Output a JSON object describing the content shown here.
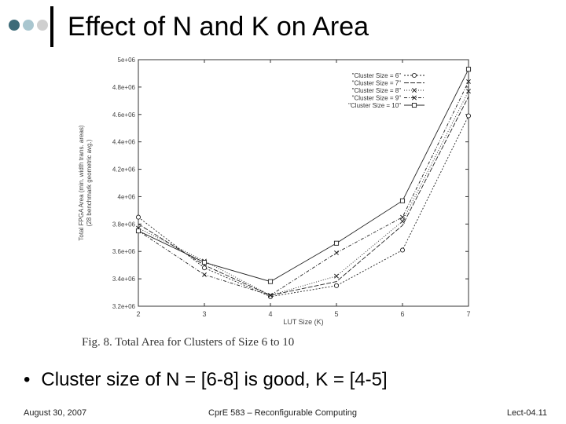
{
  "slide": {
    "title": "Effect of N and K on Area",
    "caption": "Fig. 8.   Total Area for Clusters of Size 6 to 10",
    "bullet": "Cluster size of N = [6-8] is good, K = [4-5]",
    "bullet_symbol": "•",
    "footer_left": "August 30, 2007",
    "footer_center": "CprE 583 – Reconfigurable Computing",
    "footer_right": "Lect-04.11"
  },
  "chart_data": {
    "type": "line",
    "xlabel": "LUT Size (K)",
    "ylabel": "Total FPGA Area (min. width trans. areas)",
    "ylabel2": "(28 benchmark geometric avg.)",
    "x": [
      2,
      3,
      4,
      5,
      6,
      7
    ],
    "xlim": [
      2,
      7
    ],
    "ylim": [
      3200000,
      5000000
    ],
    "y_ticks": [
      3200000,
      3400000,
      3600000,
      3800000,
      4000000,
      4200000,
      4400000,
      4600000,
      4800000,
      5000000
    ],
    "y_tick_labels": [
      "3.2e+06",
      "3.4e+06",
      "3.6e+06",
      "3.8e+06",
      "4e+06",
      "4.2e+06",
      "4.4e+06",
      "4.6e+06",
      "4.8e+06",
      "5e+06"
    ],
    "x_tick_labels": [
      "2",
      "3",
      "4",
      "5",
      "6",
      "7"
    ],
    "grid": false,
    "legend_position": "top-right",
    "series": [
      {
        "name": "\"Cluster Size = 6\"",
        "marker": "circle",
        "dash": "2,2",
        "values": [
          3850000,
          3480000,
          3270000,
          3350000,
          3610000,
          4590000
        ]
      },
      {
        "name": "\"Cluster Size = 7\"",
        "marker": "none",
        "dash": "6,2",
        "values": [
          3800000,
          3500000,
          3280000,
          3380000,
          3790000,
          4730000
        ]
      },
      {
        "name": "\"Cluster Size = 8\"",
        "marker": "x",
        "dash": "1,2",
        "values": [
          3770000,
          3530000,
          3280000,
          3420000,
          3820000,
          4770000
        ]
      },
      {
        "name": "\"Cluster Size = 9\"",
        "marker": "cross",
        "dash": "4,2,1,2",
        "values": [
          3750000,
          3430000,
          3280000,
          3590000,
          3850000,
          4840000
        ]
      },
      {
        "name": "\"Cluster Size = 10\"",
        "marker": "square",
        "dash": "",
        "values": [
          3750000,
          3520000,
          3380000,
          3660000,
          3970000,
          4930000
        ]
      }
    ]
  }
}
